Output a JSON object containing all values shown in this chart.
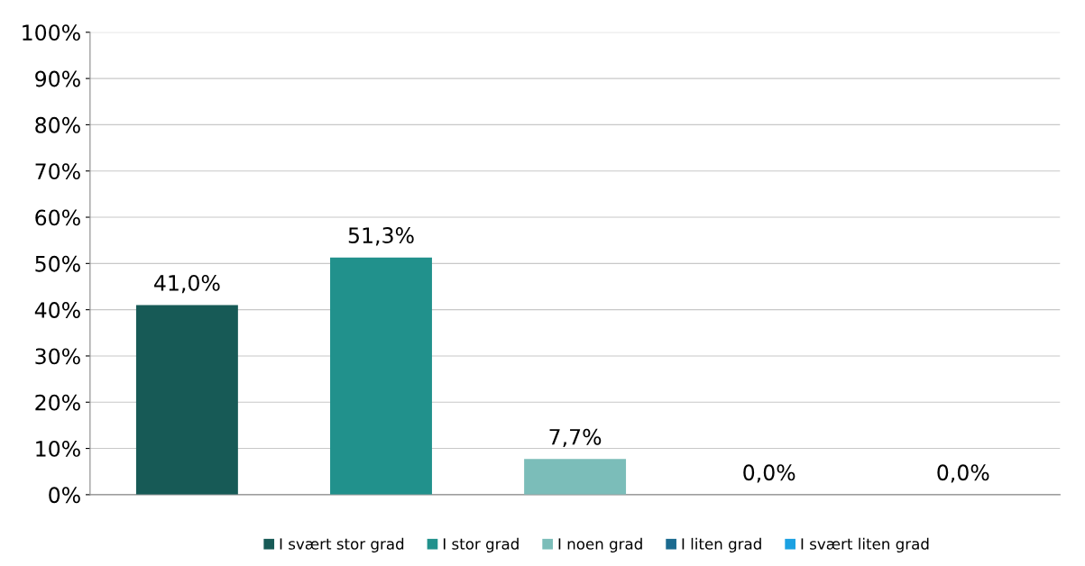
{
  "chart_data": {
    "type": "bar",
    "categories": [
      null,
      null,
      null,
      null,
      null
    ],
    "series": [
      {
        "name": "I svært stor grad",
        "color": "#175a56",
        "values": [
          41.0,
          null,
          null,
          null,
          null
        ],
        "value_labels": [
          "41,0%",
          null,
          null,
          null,
          null
        ]
      },
      {
        "name": "I stor grad",
        "color": "#21918c",
        "values": [
          null,
          51.3,
          null,
          null,
          null
        ],
        "value_labels": [
          null,
          "51,3%",
          null,
          null,
          null
        ]
      },
      {
        "name": "I noen grad",
        "color": "#7bbdb9",
        "values": [
          null,
          null,
          7.7,
          null,
          null
        ],
        "value_labels": [
          null,
          null,
          "7,7%",
          null,
          null
        ]
      },
      {
        "name": "I liten grad",
        "color": "#1b6a8f",
        "values": [
          null,
          null,
          null,
          0.0,
          null
        ],
        "value_labels": [
          null,
          null,
          null,
          "0,0%",
          null
        ]
      },
      {
        "name": "I svært liten grad",
        "color": "#1ba1e2",
        "values": [
          null,
          null,
          null,
          null,
          0.0
        ],
        "value_labels": [
          null,
          null,
          null,
          null,
          "0,0%"
        ]
      }
    ],
    "ylim": [
      0,
      100
    ],
    "yticks": [
      {
        "value": 0,
        "label": "0%"
      },
      {
        "value": 10,
        "label": "10%"
      },
      {
        "value": 20,
        "label": "20%"
      },
      {
        "value": 30,
        "label": "30%"
      },
      {
        "value": 40,
        "label": "40%"
      },
      {
        "value": 50,
        "label": "50%"
      },
      {
        "value": 60,
        "label": "60%"
      },
      {
        "value": 70,
        "label": "70%"
      },
      {
        "value": 80,
        "label": "80%"
      },
      {
        "value": 90,
        "label": "90%"
      },
      {
        "value": 100,
        "label": "100%"
      }
    ],
    "grid": "y",
    "legend": "bottom"
  }
}
